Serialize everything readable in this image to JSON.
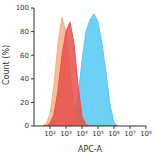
{
  "chart_data": {
    "type": "area",
    "x_label": "APC-A",
    "y_label": "Count (%)",
    "log": "x",
    "xlim": [
      10,
      100000000
    ],
    "xticks": [
      {
        "value": 100,
        "label": "10²"
      },
      {
        "value": 1000,
        "label": "10³"
      },
      {
        "value": 10000,
        "label": "10⁴"
      },
      {
        "value": 100000,
        "label": "10⁵"
      },
      {
        "value": 1000000,
        "label": "10⁶"
      },
      {
        "value": 10000000,
        "label": "10⁷"
      },
      {
        "value": 100000000,
        "label": "10⁸"
      }
    ],
    "ylim": [
      0,
      100
    ],
    "yticks": [
      0,
      20,
      40,
      60,
      80,
      100
    ],
    "x": [
      32,
      56,
      100,
      178,
      316,
      562,
      1000,
      1780,
      3160,
      5620,
      10000,
      17800,
      31600,
      56200,
      100000,
      178000,
      316000,
      562000,
      1000000,
      1780000
    ],
    "series": [
      {
        "color": "#55c8f2",
        "values": [
          0,
          0,
          0,
          0,
          0,
          0,
          0,
          2,
          8,
          25,
          55,
          80,
          90,
          95,
          88,
          70,
          45,
          18,
          3,
          0
        ]
      },
      {
        "color": "#f5b08a",
        "values": [
          0,
          2,
          10,
          35,
          70,
          92,
          80,
          45,
          15,
          3,
          0,
          0,
          0,
          0,
          0,
          0,
          0,
          0,
          0,
          0
        ]
      },
      {
        "color": "#e8504a",
        "values": [
          0,
          0,
          2,
          10,
          30,
          60,
          80,
          88,
          70,
          35,
          8,
          1,
          0,
          0,
          0,
          0,
          0,
          0,
          0,
          0
        ]
      }
    ],
    "grid": false
  }
}
